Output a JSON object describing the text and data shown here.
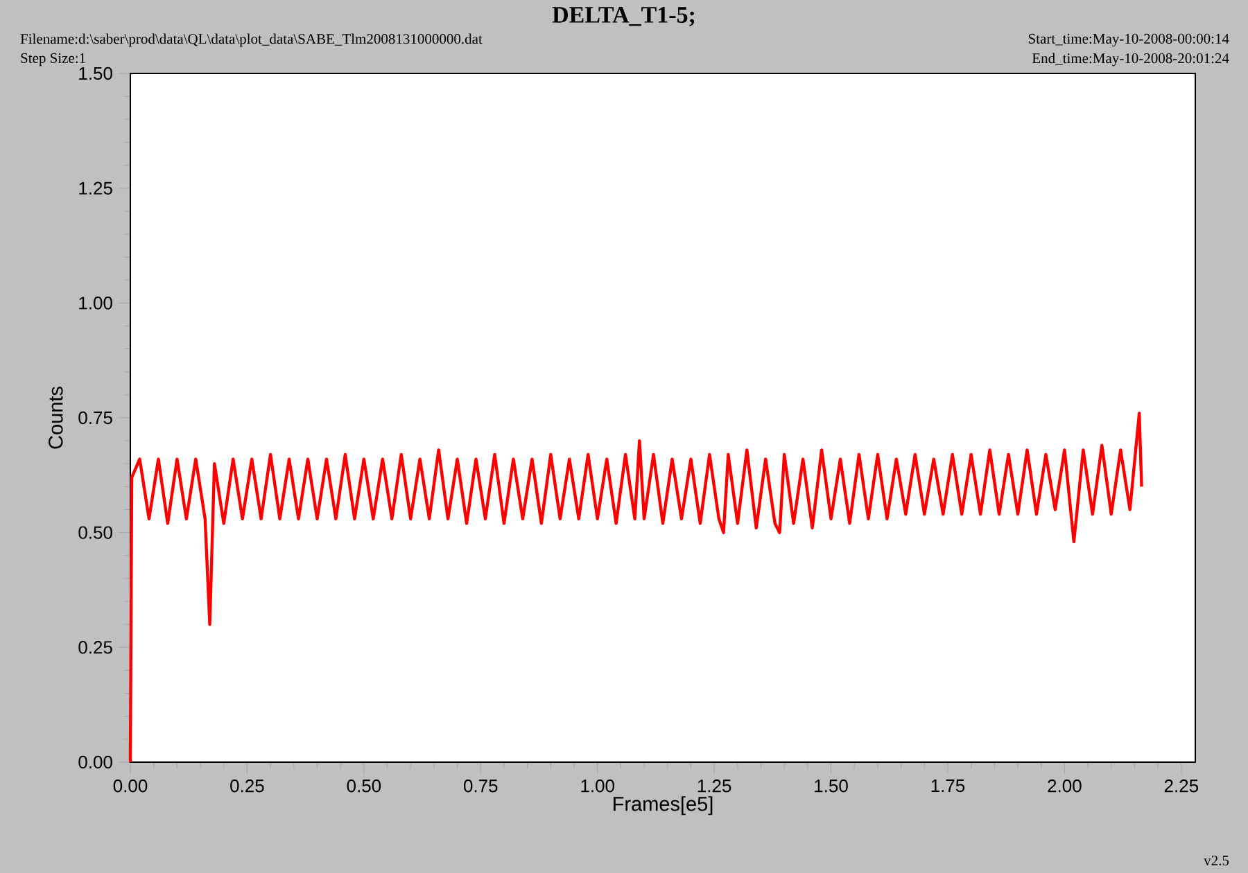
{
  "chart_data": {
    "type": "line",
    "title": "DELTA_T1-5;",
    "xlabel": "Frames[e5]",
    "ylabel": "Counts",
    "annotations": [
      "Filename:d:\\saber\\prod\\data\\QL\\data\\plot_data\\SABE_Tlm2008131000000.dat",
      "Step Size:1",
      "Start_time:May-10-2008-00:00:14",
      "End_time:May-10-2008-20:01:24",
      "v2.5"
    ],
    "xlim": [
      0,
      2.28
    ],
    "ylim": [
      0,
      1.5
    ],
    "xticks": [
      {
        "value": 0,
        "label": "0.00"
      },
      {
        "value": 0.25,
        "label": "0.25"
      },
      {
        "value": 0.5,
        "label": "0.50"
      },
      {
        "value": 0.75,
        "label": "0.75"
      },
      {
        "value": 1,
        "label": "1.00"
      },
      {
        "value": 1.25,
        "label": "1.25"
      },
      {
        "value": 1.5,
        "label": "1.50"
      },
      {
        "value": 1.75,
        "label": "1.75"
      },
      {
        "value": 2,
        "label": "2.00"
      },
      {
        "value": 2.25,
        "label": "2.25"
      }
    ],
    "yticks": [
      {
        "value": 0,
        "label": "0.00"
      },
      {
        "value": 0.25,
        "label": "0.25"
      },
      {
        "value": 0.5,
        "label": "0.50"
      },
      {
        "value": 0.75,
        "label": "0.75"
      },
      {
        "value": 1,
        "label": "1.00"
      },
      {
        "value": 1.25,
        "label": "1.25"
      },
      {
        "value": 1.5,
        "label": "1.50"
      }
    ],
    "grid": false,
    "marker": "none",
    "line_style": "solid",
    "series": [
      {
        "color": "#ff0000",
        "x": [
          0,
          0.003,
          0.02,
          0.04,
          0.06,
          0.08,
          0.1,
          0.12,
          0.14,
          0.16,
          0.17,
          0.18,
          0.2,
          0.22,
          0.24,
          0.26,
          0.28,
          0.3,
          0.32,
          0.34,
          0.36,
          0.38,
          0.4,
          0.42,
          0.44,
          0.46,
          0.48,
          0.5,
          0.52,
          0.54,
          0.56,
          0.58,
          0.6,
          0.62,
          0.64,
          0.66,
          0.68,
          0.7,
          0.72,
          0.74,
          0.76,
          0.78,
          0.8,
          0.82,
          0.84,
          0.86,
          0.88,
          0.9,
          0.92,
          0.94,
          0.96,
          0.98,
          1.0,
          1.02,
          1.04,
          1.06,
          1.08,
          1.09,
          1.1,
          1.12,
          1.14,
          1.16,
          1.18,
          1.2,
          1.22,
          1.24,
          1.26,
          1.27,
          1.28,
          1.3,
          1.32,
          1.34,
          1.36,
          1.38,
          1.39,
          1.4,
          1.42,
          1.44,
          1.46,
          1.48,
          1.5,
          1.52,
          1.54,
          1.56,
          1.58,
          1.6,
          1.62,
          1.64,
          1.66,
          1.68,
          1.7,
          1.72,
          1.74,
          1.76,
          1.78,
          1.8,
          1.82,
          1.84,
          1.86,
          1.88,
          1.9,
          1.92,
          1.94,
          1.96,
          1.98,
          2.0,
          2.02,
          2.04,
          2.06,
          2.08,
          2.1,
          2.12,
          2.14,
          2.16,
          2.165
        ],
        "values": [
          0.0,
          0.62,
          0.66,
          0.53,
          0.66,
          0.52,
          0.66,
          0.53,
          0.66,
          0.53,
          0.3,
          0.65,
          0.52,
          0.66,
          0.53,
          0.66,
          0.53,
          0.67,
          0.53,
          0.66,
          0.53,
          0.66,
          0.53,
          0.66,
          0.53,
          0.67,
          0.53,
          0.66,
          0.53,
          0.66,
          0.53,
          0.67,
          0.53,
          0.66,
          0.53,
          0.68,
          0.53,
          0.66,
          0.52,
          0.66,
          0.53,
          0.67,
          0.52,
          0.66,
          0.53,
          0.66,
          0.52,
          0.67,
          0.53,
          0.66,
          0.53,
          0.67,
          0.53,
          0.66,
          0.52,
          0.67,
          0.53,
          0.7,
          0.53,
          0.67,
          0.52,
          0.66,
          0.53,
          0.66,
          0.52,
          0.67,
          0.53,
          0.5,
          0.67,
          0.52,
          0.68,
          0.51,
          0.66,
          0.52,
          0.5,
          0.67,
          0.52,
          0.66,
          0.51,
          0.68,
          0.53,
          0.66,
          0.52,
          0.67,
          0.53,
          0.67,
          0.53,
          0.66,
          0.54,
          0.67,
          0.54,
          0.66,
          0.54,
          0.67,
          0.54,
          0.67,
          0.54,
          0.68,
          0.54,
          0.67,
          0.54,
          0.68,
          0.54,
          0.67,
          0.55,
          0.68,
          0.48,
          0.68,
          0.54,
          0.69,
          0.54,
          0.68,
          0.55,
          0.76,
          0.6
        ]
      }
    ]
  }
}
